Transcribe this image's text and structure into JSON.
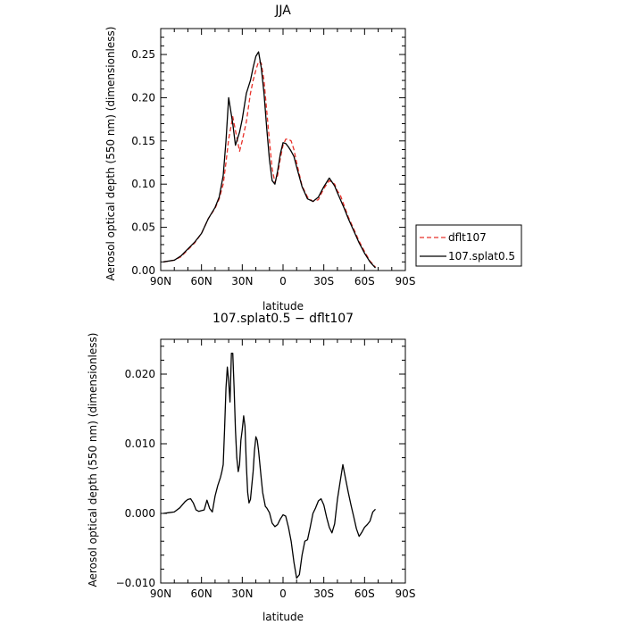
{
  "chart_data": [
    {
      "type": "line",
      "title": "JJA",
      "xlabel": "latitude",
      "ylabel": "Aerosol optical depth (550 nm) (dimensionless)",
      "xlim": [
        90,
        -90
      ],
      "ylim": [
        0,
        0.28
      ],
      "x_ticks": [
        90,
        60,
        30,
        0,
        -30,
        -60,
        -90
      ],
      "x_tick_labels": [
        "90N",
        "60N",
        "30N",
        "0",
        "30S",
        "60S",
        "90S"
      ],
      "y_ticks": [
        0,
        0.05,
        0.1,
        0.15,
        0.2,
        0.25
      ],
      "y_tick_labels": [
        "0.00",
        "0.05",
        "0.10",
        "0.15",
        "0.20",
        "0.25"
      ],
      "legend": {
        "placement": "right-outside",
        "entries": [
          {
            "label": "dflt107",
            "color": "#e8312a",
            "dash": "dashed"
          },
          {
            "label": "107.splat0.5",
            "color": "#000000",
            "dash": "solid"
          }
        ]
      },
      "series": [
        {
          "name": "dflt107",
          "color": "#e8312a",
          "dash": "dashed",
          "x": [
            88,
            80,
            75,
            70,
            65,
            60,
            55,
            50,
            47,
            44,
            42,
            40,
            37,
            35,
            32,
            30,
            27,
            24,
            22,
            20,
            18,
            16,
            14,
            12,
            10,
            8,
            6,
            4,
            2,
            0,
            -2,
            -4,
            -6,
            -8,
            -10,
            -14,
            -18,
            -22,
            -26,
            -30,
            -34,
            -38,
            -40,
            -42,
            -45,
            -48,
            -52,
            -56,
            -60,
            -64,
            -68
          ],
          "y": [
            0.01,
            0.012,
            0.016,
            0.024,
            0.032,
            0.043,
            0.06,
            0.072,
            0.083,
            0.1,
            0.125,
            0.152,
            0.178,
            0.162,
            0.138,
            0.15,
            0.172,
            0.205,
            0.22,
            0.232,
            0.242,
            0.24,
            0.22,
            0.185,
            0.15,
            0.118,
            0.102,
            0.11,
            0.13,
            0.145,
            0.152,
            0.152,
            0.15,
            0.14,
            0.125,
            0.098,
            0.085,
            0.08,
            0.082,
            0.095,
            0.104,
            0.1,
            0.092,
            0.088,
            0.075,
            0.062,
            0.048,
            0.034,
            0.022,
            0.011,
            0.004
          ]
        },
        {
          "name": "107.splat0.5",
          "color": "#000000",
          "dash": "solid",
          "x": [
            88,
            80,
            75,
            70,
            65,
            60,
            55,
            50,
            47,
            44,
            42,
            40,
            37,
            35,
            32,
            30,
            27,
            24,
            22,
            20,
            18,
            16,
            14,
            12,
            10,
            8,
            6,
            4,
            2,
            0,
            -2,
            -4,
            -6,
            -8,
            -10,
            -14,
            -18,
            -22,
            -26,
            -30,
            -34,
            -38,
            -40,
            -42,
            -45,
            -48,
            -52,
            -56,
            -60,
            -64,
            -68
          ],
          "y": [
            0.01,
            0.012,
            0.017,
            0.025,
            0.033,
            0.043,
            0.06,
            0.073,
            0.085,
            0.11,
            0.15,
            0.2,
            0.17,
            0.145,
            0.16,
            0.175,
            0.205,
            0.22,
            0.235,
            0.248,
            0.253,
            0.235,
            0.205,
            0.165,
            0.128,
            0.104,
            0.1,
            0.115,
            0.135,
            0.148,
            0.147,
            0.143,
            0.138,
            0.132,
            0.12,
            0.097,
            0.083,
            0.08,
            0.085,
            0.097,
            0.107,
            0.098,
            0.09,
            0.083,
            0.072,
            0.06,
            0.046,
            0.032,
            0.02,
            0.01,
            0.003
          ]
        }
      ]
    },
    {
      "type": "line",
      "title": "107.splat0.5 − dflt107",
      "xlabel": "latitude",
      "ylabel": "Aerosol optical depth (550 nm) (dimensionless)",
      "xlim": [
        90,
        -90
      ],
      "ylim": [
        -0.01,
        0.025
      ],
      "x_ticks": [
        90,
        60,
        30,
        0,
        -30,
        -60,
        -90
      ],
      "x_tick_labels": [
        "90N",
        "60N",
        "30N",
        "0",
        "30S",
        "60S",
        "90S"
      ],
      "y_ticks": [
        -0.01,
        0,
        0.01,
        0.02
      ],
      "y_tick_labels": [
        "−0.010",
        "0.000",
        "0.010",
        "0.020"
      ],
      "series": [
        {
          "name": "107.splat0.5 − dflt107",
          "color": "#000000",
          "dash": "solid",
          "x": [
            88,
            84,
            80,
            76,
            72,
            70,
            68,
            66,
            64,
            62,
            60,
            58,
            56,
            54,
            52,
            50,
            48,
            46,
            45,
            44,
            43,
            42,
            41,
            40,
            39,
            38,
            37,
            36,
            35,
            34,
            33,
            32,
            31,
            30,
            29,
            28,
            27,
            26,
            25,
            24,
            22,
            21,
            20,
            19,
            18,
            17,
            16,
            15,
            14,
            13,
            12,
            10,
            8,
            6,
            4,
            2,
            0,
            -2,
            -4,
            -6,
            -8,
            -10,
            -12,
            -14,
            -16,
            -18,
            -20,
            -22,
            -24,
            -26,
            -28,
            -30,
            -32,
            -34,
            -36,
            -38,
            -40,
            -42,
            -44,
            -46,
            -48,
            -50,
            -52,
            -54,
            -56,
            -58,
            -60,
            -62,
            -64,
            -66,
            -68
          ],
          "y": [
            0,
            0.0001,
            0.0002,
            0.0008,
            0.0017,
            0.002,
            0.0021,
            0.0015,
            0.0005,
            0.0003,
            0.0004,
            0.0005,
            0.0019,
            0.0007,
            0.0002,
            0.0025,
            0.004,
            0.0052,
            0.006,
            0.007,
            0.012,
            0.018,
            0.021,
            0.019,
            0.016,
            0.023,
            0.023,
            0.018,
            0.012,
            0.008,
            0.006,
            0.007,
            0.0105,
            0.012,
            0.014,
            0.0125,
            0.007,
            0.003,
            0.0015,
            0.002,
            0.006,
            0.009,
            0.011,
            0.0105,
            0.009,
            0.007,
            0.005,
            0.003,
            0.002,
            0.001,
            0.0008,
            0.0001,
            -0.0014,
            -0.0019,
            -0.0016,
            -0.0008,
            -0.0002,
            -0.0004,
            -0.002,
            -0.004,
            -0.007,
            -0.0093,
            -0.0088,
            -0.006,
            -0.004,
            -0.0038,
            -0.002,
            0,
            0.0008,
            0.0018,
            0.0021,
            0.0012,
            -0.0005,
            -0.002,
            -0.0028,
            -0.0015,
            0.002,
            0.0045,
            0.007,
            0.005,
            0.003,
            0.0012,
            -0.0005,
            -0.0022,
            -0.0033,
            -0.0027,
            -0.002,
            -0.0016,
            -0.0011,
            0.0002,
            0.0006
          ]
        }
      ]
    }
  ]
}
